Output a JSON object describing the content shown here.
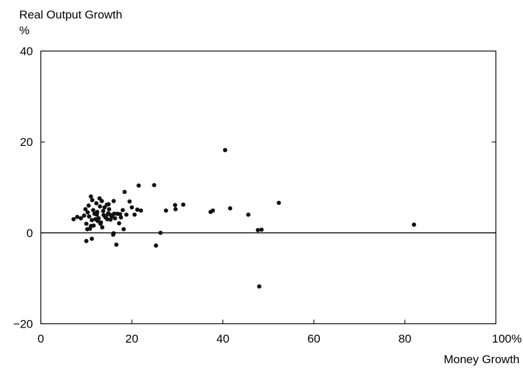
{
  "chart_data": {
    "type": "scatter",
    "title": "",
    "ylabel": "Real Output Growth",
    "yunit": "%",
    "xlabel": "Money Growth",
    "xlim": [
      0,
      100
    ],
    "ylim": [
      -20,
      40
    ],
    "xticks": [
      0,
      20,
      40,
      60,
      80,
      100
    ],
    "xtick_labels": [
      "0",
      "20",
      "40",
      "60",
      "80",
      "100%"
    ],
    "yticks": [
      -20,
      0,
      20,
      40
    ],
    "ytick_labels": [
      "−20",
      "0",
      "20",
      "40"
    ],
    "zero_line": true,
    "grid": false,
    "point_color": "#111111",
    "x": [
      7.2,
      8.0,
      8.8,
      9.5,
      10.0,
      10.3,
      10.6,
      11.0,
      11.2,
      11.5,
      11.8,
      12.0,
      12.2,
      12.4,
      12.7,
      13.0,
      13.2,
      13.4,
      13.7,
      14.0,
      14.3,
      14.5,
      14.8,
      15.0,
      15.3,
      15.6,
      16.0,
      16.3,
      16.8,
      17.2,
      17.6,
      18.0,
      18.4,
      18.8,
      19.5,
      20.0,
      20.6,
      21.2,
      22.0,
      11.0,
      12.5,
      13.5,
      14.2,
      15.2,
      10.2,
      10.8,
      11.6,
      12.3,
      13.1,
      14.6,
      15.9,
      16.6,
      17.4,
      9.8,
      10.5,
      11.3,
      12.9,
      13.8,
      14.9,
      16.1,
      18.2,
      21.5,
      24.9,
      25.3,
      26.3,
      27.5,
      29.5,
      29.6,
      31.3,
      37.3,
      37.8,
      40.5,
      41.6,
      45.6,
      47.7,
      48.0,
      48.5,
      52.3,
      82.0,
      10.0,
      11.2,
      16.0
    ],
    "y": [
      3.0,
      3.5,
      3.2,
      3.8,
      2.0,
      4.5,
      3.6,
      8.0,
      2.8,
      5.0,
      4.2,
      3.0,
      6.5,
      4.6,
      3.2,
      5.8,
      2.3,
      7.0,
      4.8,
      5.6,
      3.7,
      6.2,
      4.3,
      5.2,
      2.9,
      3.6,
      7.0,
      3.2,
      4.2,
      2.1,
      3.4,
      5.0,
      9.0,
      4.0,
      6.9,
      5.6,
      4.0,
      5.1,
      4.9,
      1.5,
      2.6,
      1.2,
      3.4,
      4.0,
      0.8,
      0.9,
      1.6,
      4.0,
      2.0,
      3.0,
      -0.4,
      -2.6,
      4.1,
      5.2,
      6.0,
      7.2,
      7.6,
      3.9,
      6.3,
      4.2,
      0.8,
      10.4,
      10.5,
      -2.8,
      0.0,
      4.9,
      6.1,
      5.2,
      6.2,
      4.6,
      4.9,
      18.2,
      5.4,
      4.0,
      0.6,
      -11.8,
      0.7,
      6.6,
      1.8,
      -1.8,
      -1.3,
      -0.1
    ]
  }
}
